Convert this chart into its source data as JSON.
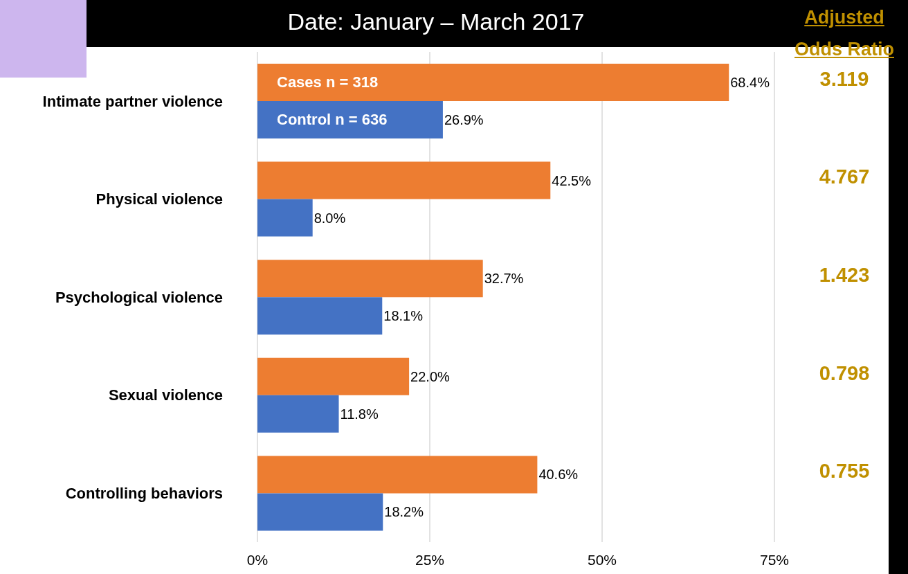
{
  "chart_data": {
    "type": "bar",
    "orientation": "horizontal",
    "title": "Date: January – March 2017",
    "categories": [
      "Intimate partner violence",
      "Physical violence",
      "Psychological violence",
      "Sexual violence",
      "Controlling behaviors"
    ],
    "series": [
      {
        "name": "Cases n = 318",
        "color": "#ed7d31",
        "values": [
          68.4,
          42.5,
          32.7,
          22.0,
          40.6
        ],
        "value_labels": [
          "68.4%",
          "42.5%",
          "32.7%",
          "22.0%",
          "40.6%"
        ]
      },
      {
        "name": "Control n = 636",
        "color": "#4472c4",
        "values": [
          26.9,
          8.0,
          18.1,
          11.8,
          18.2
        ],
        "value_labels": [
          "26.9%",
          "8.0%",
          "18.1%",
          "11.8%",
          "18.2%"
        ]
      }
    ],
    "xlim": [
      0,
      75
    ],
    "xticks": [
      {
        "value": 0,
        "label": "0%"
      },
      {
        "value": 25,
        "label": "25%"
      },
      {
        "value": 50,
        "label": "50%"
      },
      {
        "value": 75,
        "label": "75%"
      }
    ],
    "grid": "x",
    "legend": "top left",
    "annotations": [
      "Adjusted Odds Ratio",
      "3.119",
      "4.767",
      "1.423",
      "0.798",
      "0.755"
    ]
  }
}
